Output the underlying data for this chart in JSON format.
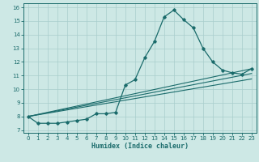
{
  "xlabel": "Humidex (Indice chaleur)",
  "xlim": [
    -0.5,
    23.5
  ],
  "ylim": [
    6.8,
    16.3
  ],
  "yticks": [
    7,
    8,
    9,
    10,
    11,
    12,
    13,
    14,
    15,
    16
  ],
  "xticks": [
    0,
    1,
    2,
    3,
    4,
    5,
    6,
    7,
    8,
    9,
    10,
    11,
    12,
    13,
    14,
    15,
    16,
    17,
    18,
    19,
    20,
    21,
    22,
    23
  ],
  "bg_color": "#cde8e5",
  "line_color": "#1a6b6b",
  "grid_color": "#a8cdcc",
  "main_curve": {
    "x": [
      0,
      1,
      2,
      3,
      4,
      5,
      6,
      7,
      8,
      9,
      10,
      11,
      12,
      13,
      14,
      15,
      16,
      17,
      18,
      19,
      20,
      21,
      22,
      23
    ],
    "y": [
      8.0,
      7.5,
      7.5,
      7.5,
      7.6,
      7.7,
      7.8,
      8.2,
      8.2,
      8.3,
      10.3,
      10.7,
      12.3,
      13.5,
      15.3,
      15.8,
      15.1,
      14.5,
      13.0,
      12.0,
      11.4,
      11.2,
      11.1,
      11.5
    ]
  },
  "straight_lines": [
    {
      "x": [
        0,
        23
      ],
      "y": [
        8.0,
        11.5
      ]
    },
    {
      "x": [
        0,
        23
      ],
      "y": [
        8.0,
        11.15
      ]
    },
    {
      "x": [
        0,
        23
      ],
      "y": [
        8.0,
        10.75
      ]
    }
  ]
}
